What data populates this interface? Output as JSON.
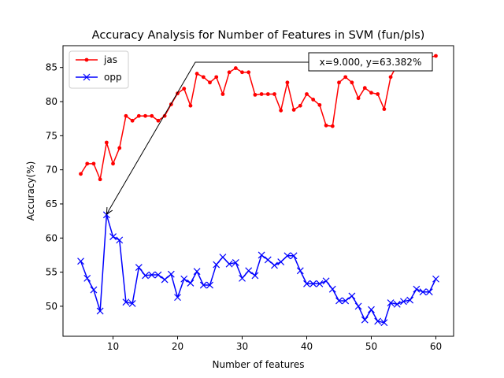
{
  "chart_data": {
    "type": "line",
    "title": "Accuracy Analysis for Number of Features in SVM (fun/pls)",
    "xlabel": "Number of features",
    "ylabel": "Accuracy(%)",
    "xlim": [
      2.25,
      62.75
    ],
    "ylim": [
      45.6,
      88.2
    ],
    "xticks": [
      10,
      20,
      30,
      40,
      50,
      60
    ],
    "yticks": [
      50,
      55,
      60,
      65,
      70,
      75,
      80,
      85
    ],
    "grid": false,
    "legend_position": "top-left",
    "series": [
      {
        "name": "jas",
        "color": "#ff0000",
        "marker": "dot",
        "x": [
          5,
          6,
          7,
          8,
          9,
          10,
          11,
          12,
          13,
          14,
          15,
          16,
          17,
          18,
          19,
          20,
          21,
          22,
          23,
          24,
          25,
          26,
          27,
          28,
          29,
          30,
          31,
          32,
          33,
          34,
          35,
          36,
          37,
          38,
          39,
          40,
          41,
          42,
          43,
          44,
          45,
          46,
          47,
          48,
          49,
          50,
          51,
          52,
          53,
          54,
          55,
          56,
          57,
          58,
          59,
          60
        ],
        "values": [
          69.4,
          70.9,
          70.9,
          68.6,
          74.0,
          70.9,
          73.2,
          77.9,
          77.2,
          77.9,
          77.9,
          77.9,
          77.2,
          77.9,
          79.6,
          81.2,
          81.9,
          79.4,
          84.1,
          83.6,
          82.8,
          83.6,
          81.1,
          84.3,
          84.9,
          84.3,
          84.3,
          81.0,
          81.1,
          81.1,
          81.1,
          78.7,
          82.8,
          78.8,
          79.4,
          81.1,
          80.3,
          79.5,
          76.5,
          76.4,
          82.8,
          83.6,
          82.8,
          80.5,
          82.0,
          81.3,
          81.1,
          78.9,
          83.6,
          85.4,
          85.6,
          85.8,
          86.1,
          86.3,
          86.5,
          86.7
        ]
      },
      {
        "name": "opp",
        "color": "#0000ff",
        "marker": "x",
        "x": [
          5,
          6,
          7,
          8,
          9,
          10,
          11,
          12,
          13,
          14,
          15,
          16,
          17,
          18,
          19,
          20,
          21,
          22,
          23,
          24,
          25,
          26,
          27,
          28,
          29,
          30,
          31,
          32,
          33,
          34,
          35,
          36,
          37,
          38,
          39,
          40,
          41,
          42,
          43,
          44,
          45,
          46,
          47,
          48,
          49,
          50,
          51,
          52,
          53,
          54,
          55,
          56,
          57,
          58,
          59,
          60
        ],
        "values": [
          56.6,
          54.1,
          52.4,
          49.3,
          63.4,
          60.2,
          59.7,
          50.6,
          50.4,
          55.7,
          54.5,
          54.6,
          54.6,
          53.9,
          54.7,
          51.3,
          54.0,
          53.4,
          55.1,
          53.1,
          53.1,
          56.1,
          57.2,
          56.2,
          56.4,
          54.1,
          55.2,
          54.5,
          57.5,
          56.8,
          56.0,
          56.5,
          57.4,
          57.4,
          55.2,
          53.3,
          53.3,
          53.3,
          53.7,
          52.5,
          50.8,
          50.8,
          51.5,
          50.0,
          48.0,
          49.5,
          47.8,
          47.6,
          50.5,
          50.3,
          50.7,
          50.9,
          52.5,
          52.1,
          52.1,
          54.0
        ]
      }
    ],
    "annotation": {
      "text": "x=9.000, y=63.382%",
      "point": [
        9,
        63.382
      ]
    }
  }
}
